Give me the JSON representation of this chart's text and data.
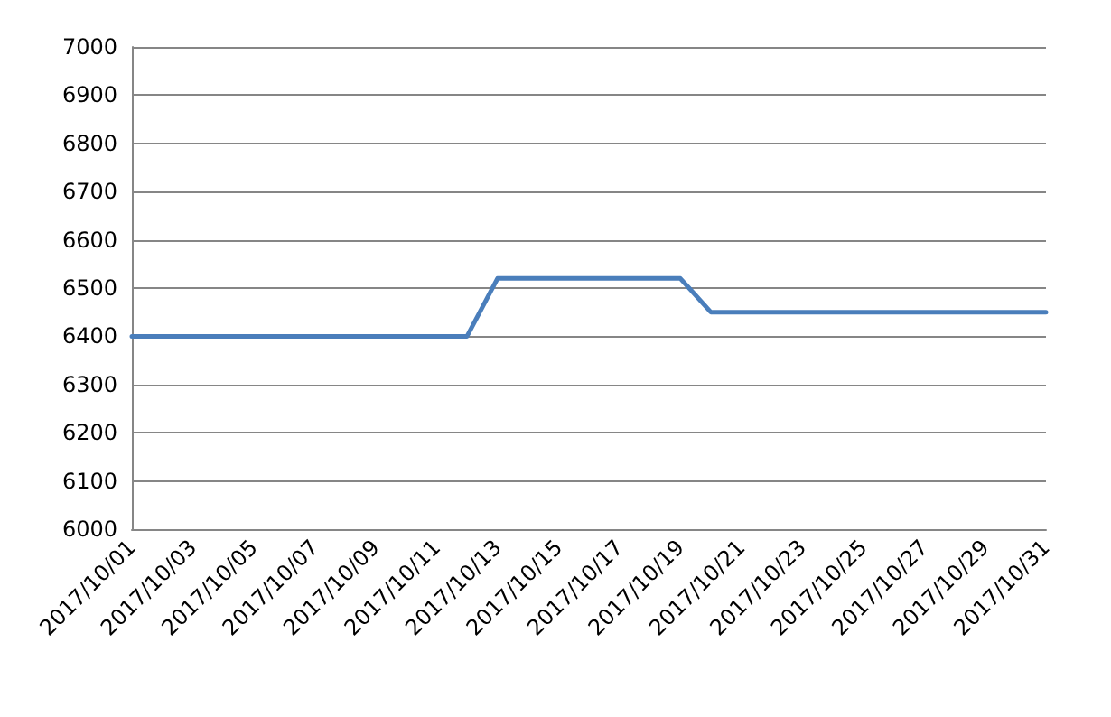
{
  "chart_data": {
    "type": "line",
    "categories": [
      "2017/10/01",
      null,
      "2017/10/03",
      null,
      "2017/10/05",
      null,
      "2017/10/07",
      null,
      "2017/10/09",
      null,
      "2017/10/11",
      null,
      "2017/10/13",
      null,
      "2017/10/15",
      null,
      "2017/10/17",
      null,
      "2017/10/19",
      null,
      "2017/10/21",
      null,
      "2017/10/23",
      null,
      "2017/10/25",
      null,
      "2017/10/27",
      null,
      "2017/10/29",
      null,
      "2017/10/31"
    ],
    "series": [
      {
        "color": "#4a7ebb",
        "values": [
          6400,
          6400,
          6400,
          6400,
          6400,
          6400,
          6400,
          6400,
          6400,
          6400,
          6400,
          6400,
          6520,
          6520,
          6520,
          6520,
          6520,
          6520,
          6520,
          6450,
          6450,
          6450,
          6450,
          6450,
          6450,
          6450,
          6450,
          6450,
          6450,
          6450,
          6450
        ]
      }
    ],
    "ylim": [
      6000,
      7000
    ],
    "yticks": [
      6000,
      6100,
      6200,
      6300,
      6400,
      6500,
      6600,
      6700,
      6800,
      6900,
      7000
    ],
    "grid": "y",
    "marker": "none",
    "line_style": "solid"
  }
}
